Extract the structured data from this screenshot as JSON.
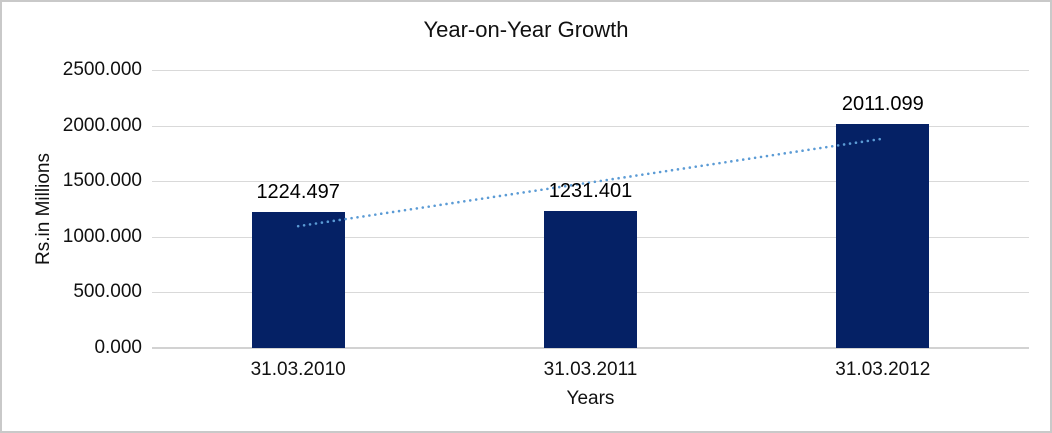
{
  "chart_data": {
    "type": "bar",
    "title": "Year-on-Year Growth",
    "categories": [
      "31.03.2010",
      "31.03.2011",
      "31.03.2012"
    ],
    "values": [
      1224.497,
      1231.401,
      2011.099
    ],
    "data_labels": [
      "1224.497",
      "1231.401",
      "2011.099"
    ],
    "xlabel": "Years",
    "ylabel": "Rs.in Millions",
    "ylim": [
      0,
      2500
    ],
    "y_tick_step": 500,
    "y_ticks_top_to_bottom": [
      "2500.000",
      "2000.000",
      "1500.000",
      "1000.000",
      "500.000",
      "0.000"
    ],
    "grid": true,
    "legend": false,
    "trendline": {
      "type": "linear",
      "style": "dotted"
    }
  },
  "colors": {
    "bar_fill": "#052165",
    "trendline": "#5b9bd5",
    "gridline": "#d9d9d9",
    "axis_line": "#d2d2d2",
    "text": "#111111",
    "chart_border": "#c9c9c9",
    "background": "#ffffff"
  }
}
